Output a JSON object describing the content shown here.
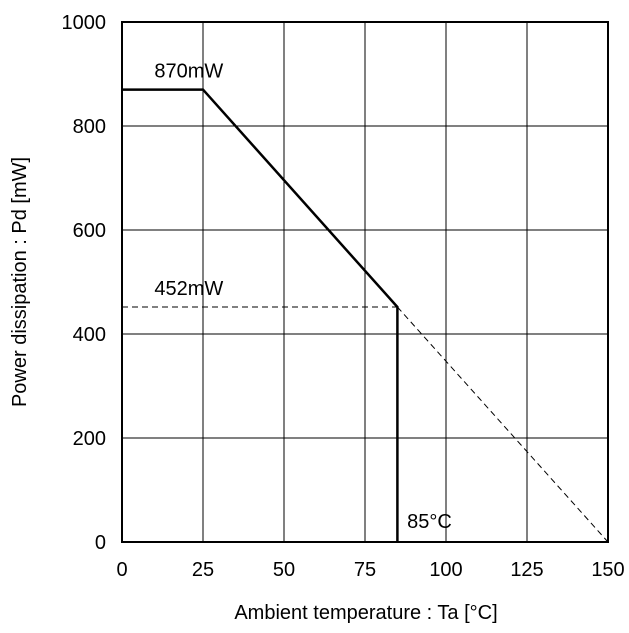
{
  "chart_data": {
    "type": "line",
    "xlabel": "Ambient temperature : Ta [°C]",
    "ylabel": "Power dissipation : Pd [mW]",
    "xlim": [
      0,
      150
    ],
    "ylim": [
      0,
      1000
    ],
    "x_ticks": [
      0,
      25,
      50,
      75,
      100,
      125,
      150
    ],
    "y_ticks": [
      0,
      200,
      400,
      600,
      800,
      1000
    ],
    "x_tick_labels": [
      "0",
      "25",
      "50",
      "75",
      "100",
      "125",
      "150"
    ],
    "y_tick_labels": [
      "0",
      "200",
      "400",
      "600",
      "800",
      "1000"
    ],
    "grid": true,
    "series": [
      {
        "style": "solid",
        "points": [
          [
            0,
            870
          ],
          [
            25,
            870
          ],
          [
            85,
            452
          ],
          [
            85,
            0
          ]
        ]
      },
      {
        "style": "dashed",
        "points": [
          [
            0,
            452
          ],
          [
            85,
            452
          ]
        ]
      },
      {
        "style": "dashed",
        "points": [
          [
            85,
            452
          ],
          [
            150,
            0
          ]
        ]
      }
    ],
    "annotations": [
      {
        "text": "870mW",
        "x": 10,
        "y": 870
      },
      {
        "text": "452mW",
        "x": 10,
        "y": 452
      },
      {
        "text": "85°C",
        "x": 88,
        "y": 0
      }
    ],
    "colors": {
      "line": "#000000",
      "grid": "#000000",
      "background": "#ffffff"
    }
  }
}
